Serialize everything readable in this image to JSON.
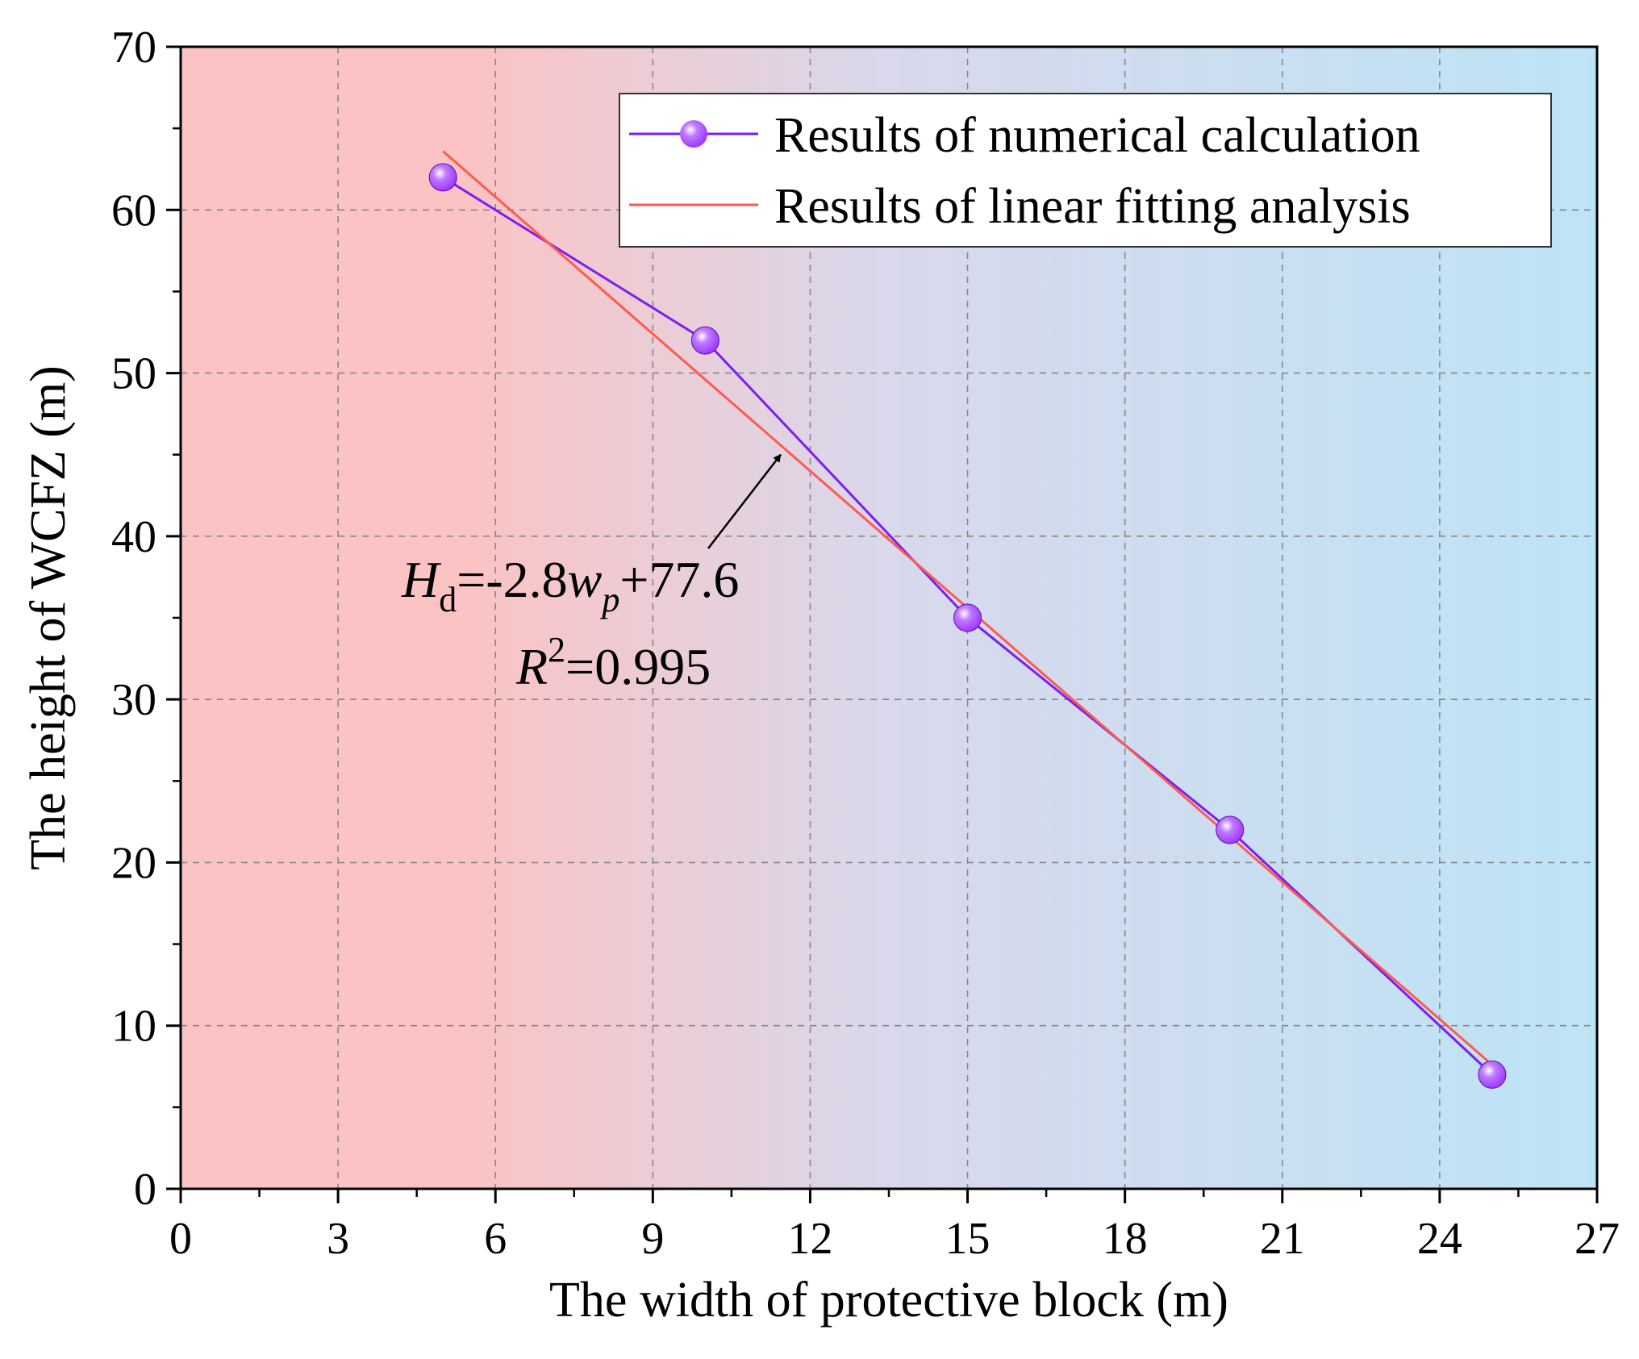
{
  "chart_data": {
    "type": "line",
    "title": "",
    "xlabel": "The width of protective block (m)",
    "ylabel": "The height of WCFZ (m)",
    "xlim": [
      0,
      27
    ],
    "ylim": [
      0,
      70
    ],
    "xticks": [
      0,
      3,
      6,
      9,
      12,
      15,
      18,
      21,
      24,
      27
    ],
    "yticks": [
      0,
      10,
      20,
      30,
      40,
      50,
      60,
      70
    ],
    "grid": true,
    "background_gradient": {
      "left": "#fbc3c3",
      "middle": "#d9d8ec",
      "right": "#bde4f6"
    },
    "series": [
      {
        "name": "Results of numerical calculation",
        "kind": "line-markers",
        "color": "#7a1ff0",
        "marker_color": "#9b30ff",
        "x": [
          5,
          10,
          15,
          20,
          25
        ],
        "y": [
          62,
          52,
          35,
          22,
          7
        ]
      },
      {
        "name": "Results of linear fitting analysis",
        "kind": "line",
        "color": "#ff5a50",
        "x": [
          5,
          25
        ],
        "y": [
          63.6,
          7.6
        ]
      }
    ],
    "legend": {
      "placement": "top-right"
    },
    "annotation": {
      "equation": {
        "H": "H",
        "d": "d",
        "rhs1": "=-2.8",
        "w": "w",
        "p": "p",
        "rhs2": "+77.6"
      },
      "r2": {
        "R": "R",
        "sup": "2",
        "rhs": "=0.995"
      },
      "arrow_target": {
        "x": 11.5,
        "y": 45.4
      }
    }
  }
}
